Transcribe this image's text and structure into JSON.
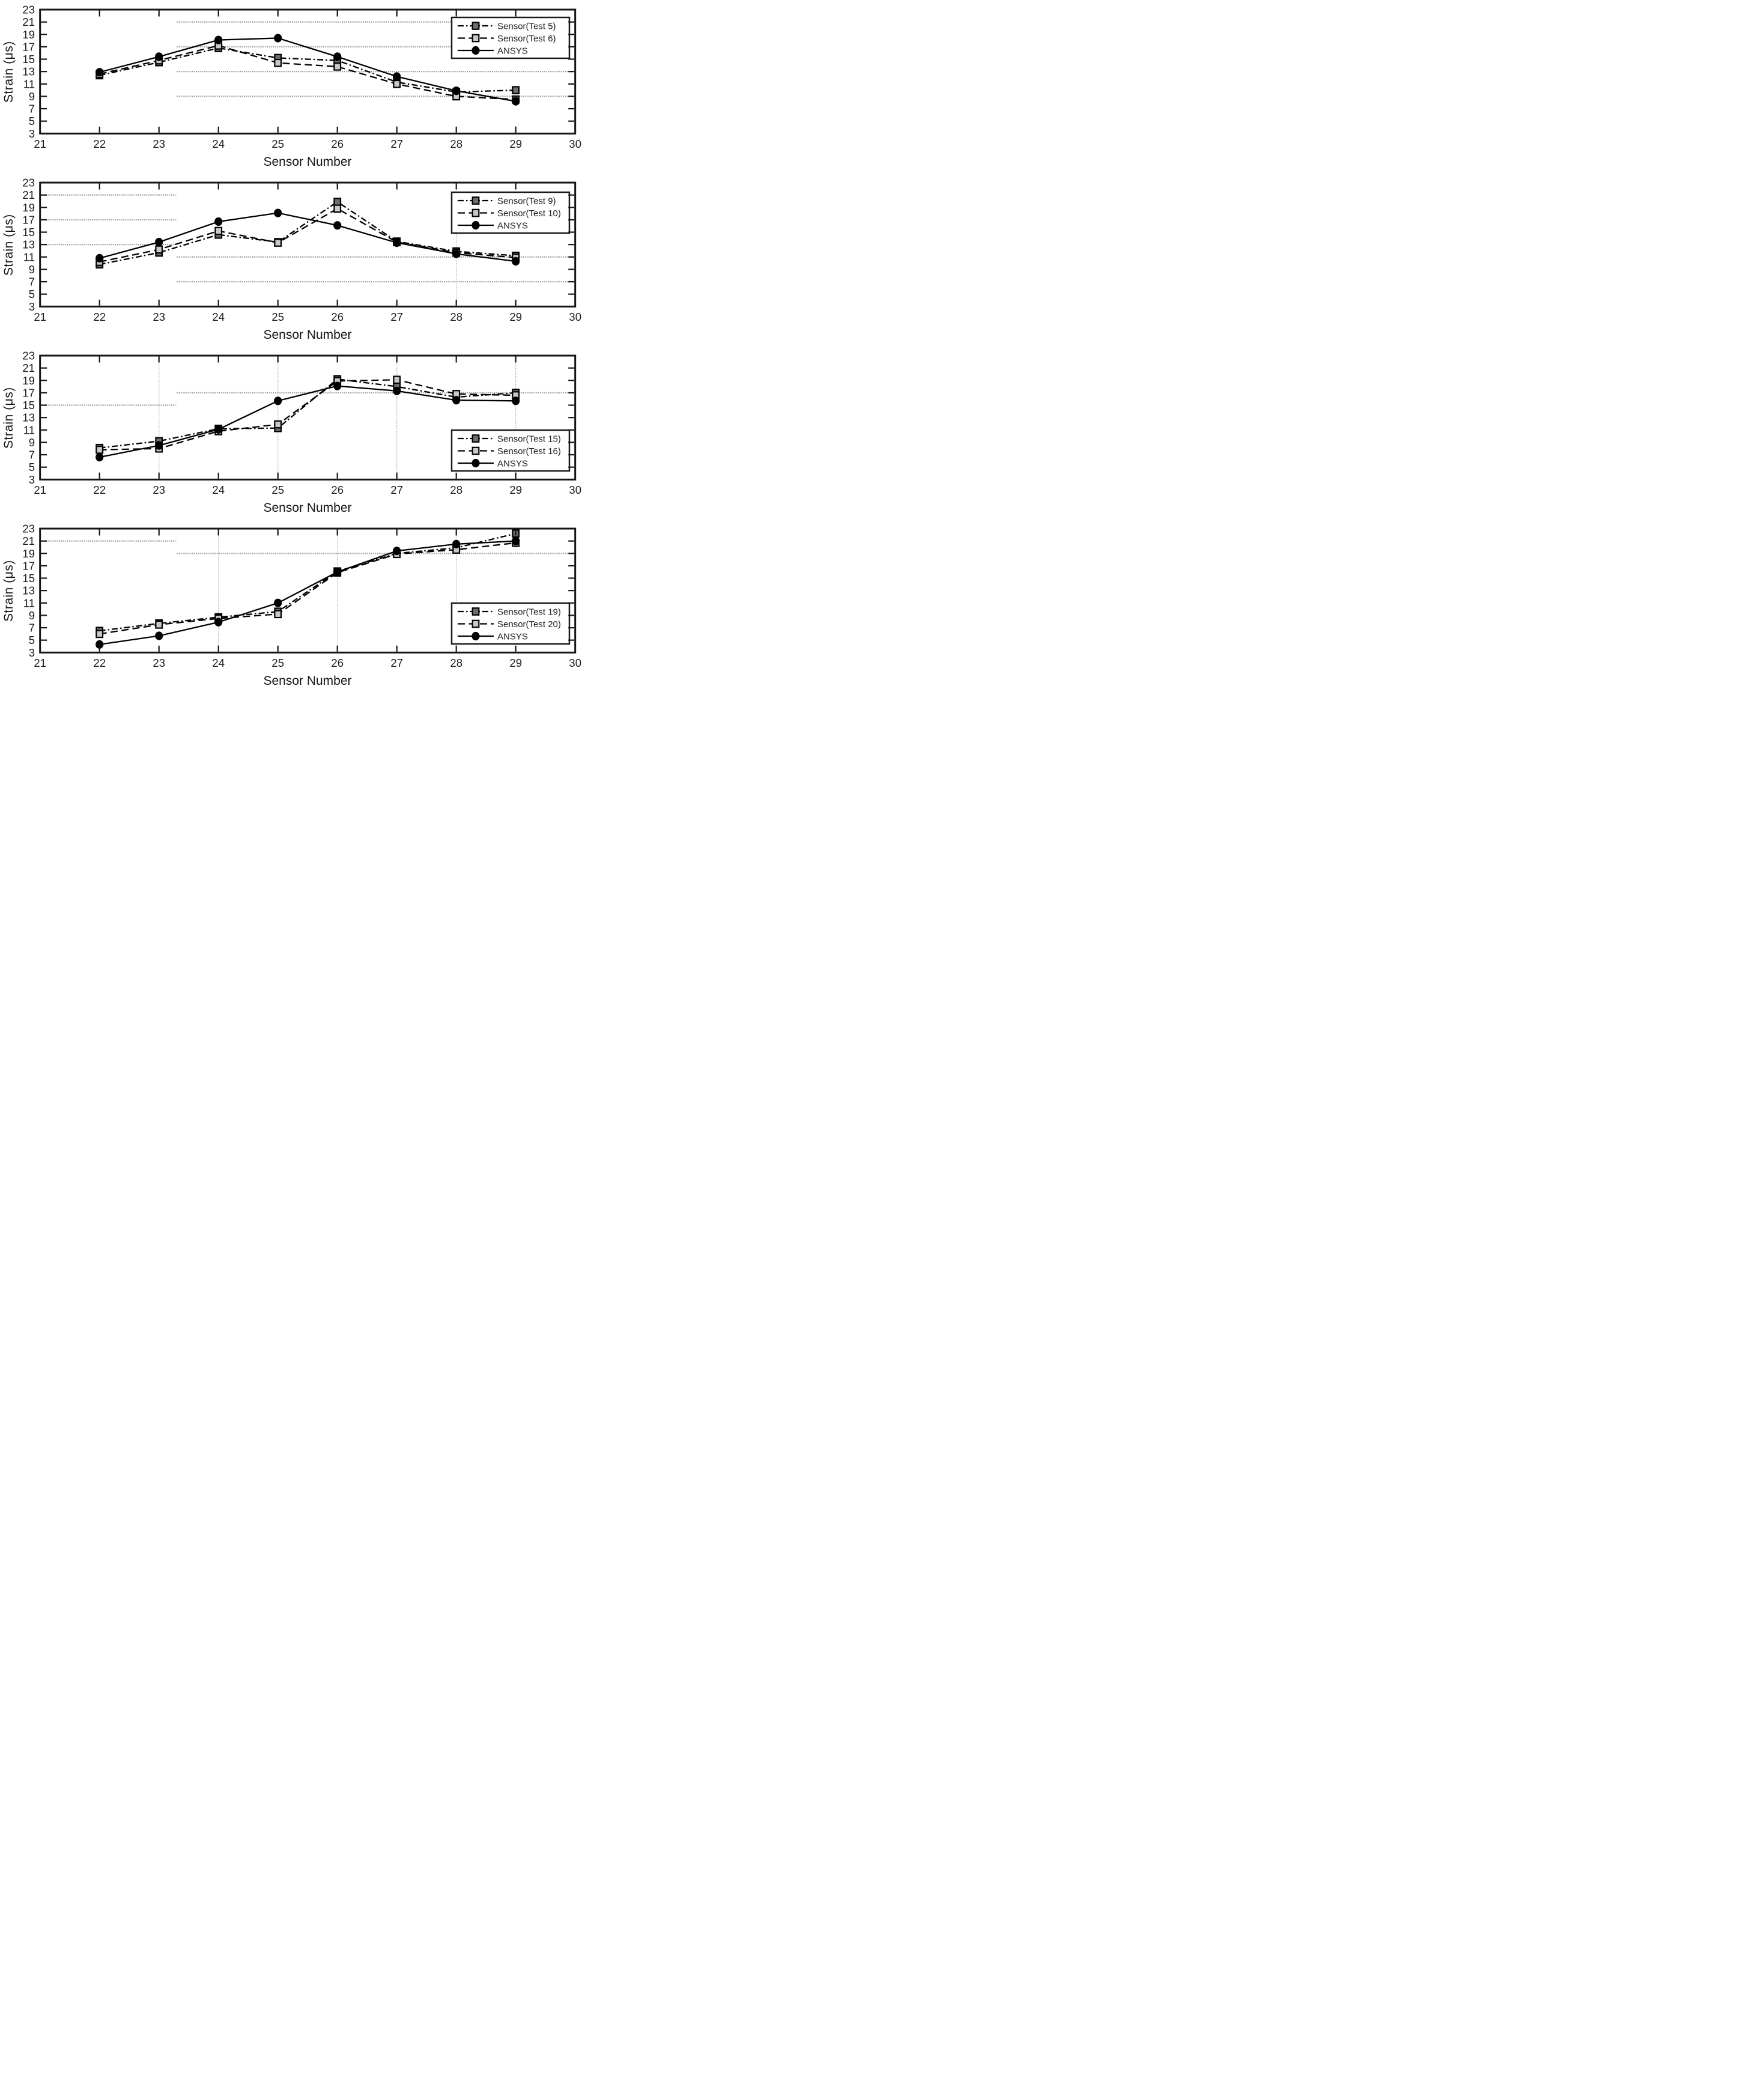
{
  "colors": {
    "background": "#ffffff",
    "axis": "#161616",
    "grid_h": "#999999",
    "grid_v": "#a8a8a8",
    "line": "#000000",
    "marker_dark": "#6e6e6e",
    "marker_light": "#c9c9c9",
    "marker_ansys": "#000000",
    "legend_bg": "#ffffff",
    "legend_border": "#1a1a1a",
    "text": "#1d1d1d"
  },
  "chart_data": [
    {
      "type": "line",
      "title": "",
      "xlabel": "Sensor Number",
      "ylabel": "Strain (μs)",
      "xlim": [
        21,
        30
      ],
      "ylim": [
        3,
        23
      ],
      "xticks": [
        21,
        22,
        23,
        24,
        25,
        26,
        27,
        28,
        29,
        30
      ],
      "yticks": [
        3,
        5,
        7,
        9,
        11,
        13,
        15,
        17,
        19,
        21,
        23
      ],
      "x": [
        22,
        23,
        24,
        25,
        26,
        27,
        28,
        29
      ],
      "series": [
        {
          "name": "Sensor(Test 5)",
          "marker": "square-dark",
          "line": "dashdot",
          "y": [
            12.4,
            14.5,
            16.8,
            15.2,
            14.8,
            11.3,
            9.7,
            10.0
          ]
        },
        {
          "name": "Sensor(Test 6)",
          "marker": "square-light",
          "line": "dashed",
          "y": [
            12.6,
            14.8,
            17.2,
            14.4,
            13.8,
            11.0,
            9.0,
            8.5
          ]
        },
        {
          "name": "ANSYS",
          "marker": "circle",
          "line": "solid",
          "y": [
            12.9,
            15.4,
            18.1,
            18.4,
            15.4,
            12.2,
            9.9,
            8.2
          ]
        }
      ],
      "legend": {
        "position": "top-right",
        "offset_y": 29,
        "entries": [
          "Sensor(Test 5)",
          "Sensor(Test 6)",
          "ANSYS"
        ]
      },
      "gridlines": {
        "h": [
          {
            "y": 21,
            "x1": 23.3,
            "x2": 30
          },
          {
            "y": 17,
            "x1": 23.3,
            "x2": 30
          },
          {
            "y": 13,
            "x1": 23.3,
            "x2": 30
          },
          {
            "y": 9,
            "x1": 23.3,
            "x2": 30
          }
        ],
        "v": [],
        "stubs": [
          27,
          29
        ]
      }
    },
    {
      "type": "line",
      "title": "",
      "xlabel": "Sensor Number",
      "ylabel": "Strain (μs)",
      "xlim": [
        21,
        30
      ],
      "ylim": [
        3,
        23
      ],
      "xticks": [
        21,
        22,
        23,
        24,
        25,
        26,
        27,
        28,
        29,
        30
      ],
      "yticks": [
        3,
        5,
        7,
        9,
        11,
        13,
        15,
        17,
        19,
        21,
        23
      ],
      "x": [
        22,
        23,
        24,
        25,
        26,
        27,
        28,
        29
      ],
      "series": [
        {
          "name": "Sensor(Test 9)",
          "marker": "square-dark",
          "line": "dashdot",
          "y": [
            9.8,
            11.7,
            14.6,
            13.4,
            19.9,
            13.5,
            11.9,
            11.2
          ]
        },
        {
          "name": "Sensor(Test 10)",
          "marker": "square-light",
          "line": "dashed",
          "y": [
            10.2,
            12.2,
            15.2,
            13.3,
            18.8,
            13.4,
            11.7,
            10.9
          ]
        },
        {
          "name": "ANSYS",
          "marker": "circle",
          "line": "solid",
          "y": [
            10.8,
            13.4,
            16.7,
            18.1,
            16.1,
            13.3,
            11.5,
            10.3
          ]
        }
      ],
      "legend": {
        "position": "top-right",
        "offset_y": 32,
        "entries": [
          "Sensor(Test 9)",
          "Sensor(Test 10)",
          "ANSYS"
        ]
      },
      "gridlines": {
        "h": [
          {
            "y": 21,
            "x1": 21,
            "x2": 23.3
          },
          {
            "y": 17,
            "x1": 21,
            "x2": 23.3
          },
          {
            "y": 13,
            "x1": 21,
            "x2": 23.3
          },
          {
            "y": 11,
            "x1": 23.3,
            "x2": 30
          },
          {
            "y": 7,
            "x1": 23.3,
            "x2": 30
          }
        ],
        "v": [
          {
            "x": 28,
            "y1": 3,
            "y2": 16.3
          }
        ],
        "stubs": []
      }
    },
    {
      "type": "line",
      "title": "",
      "xlabel": "Sensor Number",
      "ylabel": "Strain (μs)",
      "xlim": [
        21,
        30
      ],
      "ylim": [
        3,
        23
      ],
      "xticks": [
        21,
        22,
        23,
        24,
        25,
        26,
        27,
        28,
        29,
        30
      ],
      "yticks": [
        3,
        5,
        7,
        9,
        11,
        13,
        15,
        17,
        19,
        21,
        23
      ],
      "x": [
        22,
        23,
        24,
        25,
        26,
        27,
        28,
        29
      ],
      "series": [
        {
          "name": "Sensor(Test 15)",
          "marker": "square-dark",
          "line": "dashdot",
          "y": [
            8.1,
            9.2,
            11.2,
            11.3,
            19.2,
            18.0,
            16.3,
            17.0
          ]
        },
        {
          "name": "Sensor(Test 16)",
          "marker": "square-light",
          "line": "dashed",
          "y": [
            7.8,
            8.0,
            10.8,
            11.9,
            18.9,
            19.1,
            16.8,
            16.6
          ]
        },
        {
          "name": "ANSYS",
          "marker": "circle",
          "line": "solid",
          "y": [
            6.6,
            8.5,
            11.1,
            15.7,
            18.1,
            17.3,
            15.8,
            15.7
          ]
        }
      ],
      "legend": {
        "position": "bottom-right",
        "offset_y": 140,
        "entries": [
          "Sensor(Test 15)",
          "Sensor(Test 16)",
          "ANSYS"
        ]
      },
      "gridlines": {
        "h": [
          {
            "y": 15,
            "x1": 21,
            "x2": 23.3
          },
          {
            "y": 17,
            "x1": 23.3,
            "x2": 30
          }
        ],
        "v": [
          {
            "x": 23,
            "y1": 3,
            "y2": 23
          },
          {
            "x": 25,
            "y1": 3,
            "y2": 23
          },
          {
            "x": 27,
            "y1": 3,
            "y2": 23
          },
          {
            "x": 29,
            "y1": 3,
            "y2": 23
          }
        ],
        "stubs": [
          22
        ]
      }
    },
    {
      "type": "line",
      "title": "",
      "xlabel": "Sensor Number",
      "ylabel": "Strain (μs)",
      "xlim": [
        21,
        30
      ],
      "ylim": [
        3,
        23
      ],
      "xticks": [
        21,
        22,
        23,
        24,
        25,
        26,
        27,
        28,
        29,
        30
      ],
      "yticks": [
        3,
        5,
        7,
        9,
        11,
        13,
        15,
        17,
        19,
        21,
        23
      ],
      "x": [
        22,
        23,
        24,
        25,
        26,
        27,
        28,
        29
      ],
      "series": [
        {
          "name": "Sensor(Test 19)",
          "marker": "square-dark",
          "line": "dashdot",
          "y": [
            6.5,
            7.7,
            8.7,
            9.6,
            16.1,
            19.0,
            19.9,
            22.2
          ]
        },
        {
          "name": "Sensor(Test 20)",
          "marker": "square-light",
          "line": "dashed",
          "y": [
            6.0,
            7.5,
            8.5,
            9.2,
            15.9,
            18.9,
            19.6,
            20.7
          ]
        },
        {
          "name": "ANSYS",
          "marker": "circle",
          "line": "solid",
          "y": [
            4.3,
            5.7,
            7.9,
            11.0,
            16.0,
            19.4,
            20.5,
            21.0
          ]
        }
      ],
      "legend": {
        "position": "bottom-right",
        "offset_y": 140,
        "entries": [
          "Sensor(Test 19)",
          "Sensor(Test 20)",
          "ANSYS"
        ]
      },
      "gridlines": {
        "h": [
          {
            "y": 21,
            "x1": 21,
            "x2": 23.3
          },
          {
            "y": 19,
            "x1": 23.3,
            "x2": 30
          }
        ],
        "v": [
          {
            "x": 24,
            "y1": 3,
            "y2": 23
          },
          {
            "x": 26,
            "y1": 3,
            "y2": 23
          },
          {
            "x": 28,
            "y1": 3,
            "y2": 23
          }
        ],
        "stubs": []
      }
    }
  ]
}
